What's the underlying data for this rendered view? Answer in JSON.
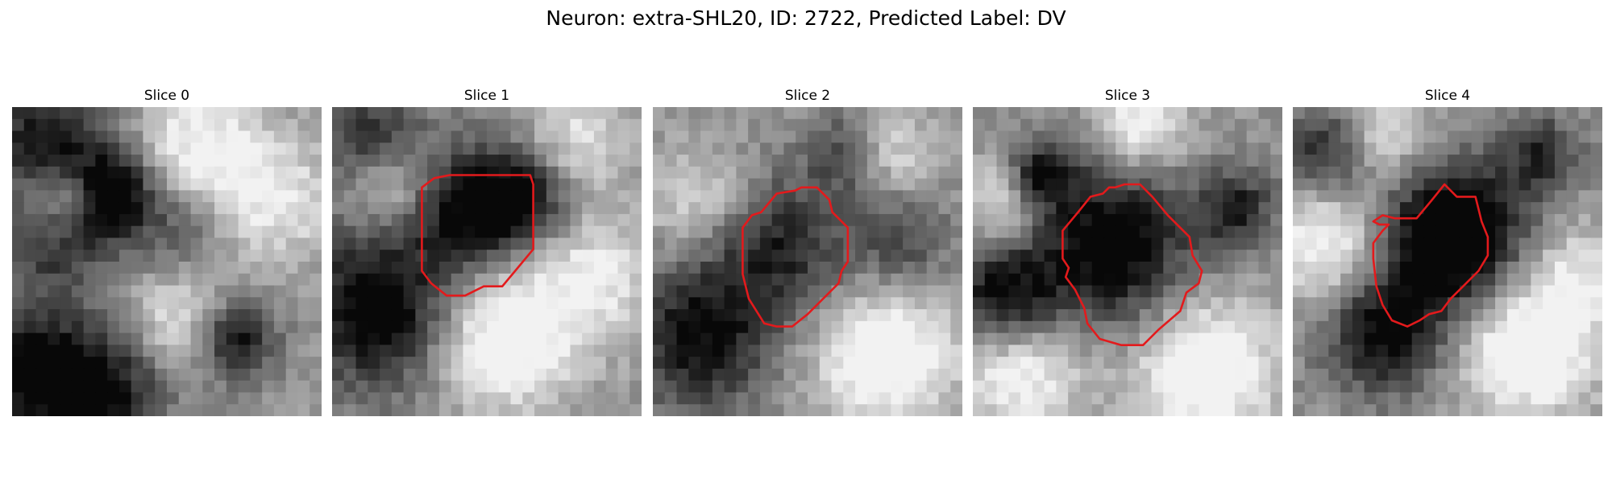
{
  "figure": {
    "title": "Neuron: extra-SHL20, ID: 2722, Predicted Label: DV"
  },
  "panels": [
    {
      "title": "Slice 0"
    },
    {
      "title": "Slice 1"
    },
    {
      "title": "Slice 2"
    },
    {
      "title": "Slice 3"
    },
    {
      "title": "Slice 4"
    }
  ],
  "colors": {
    "contour": "#e31a1c",
    "colormap": "grayscale"
  }
}
